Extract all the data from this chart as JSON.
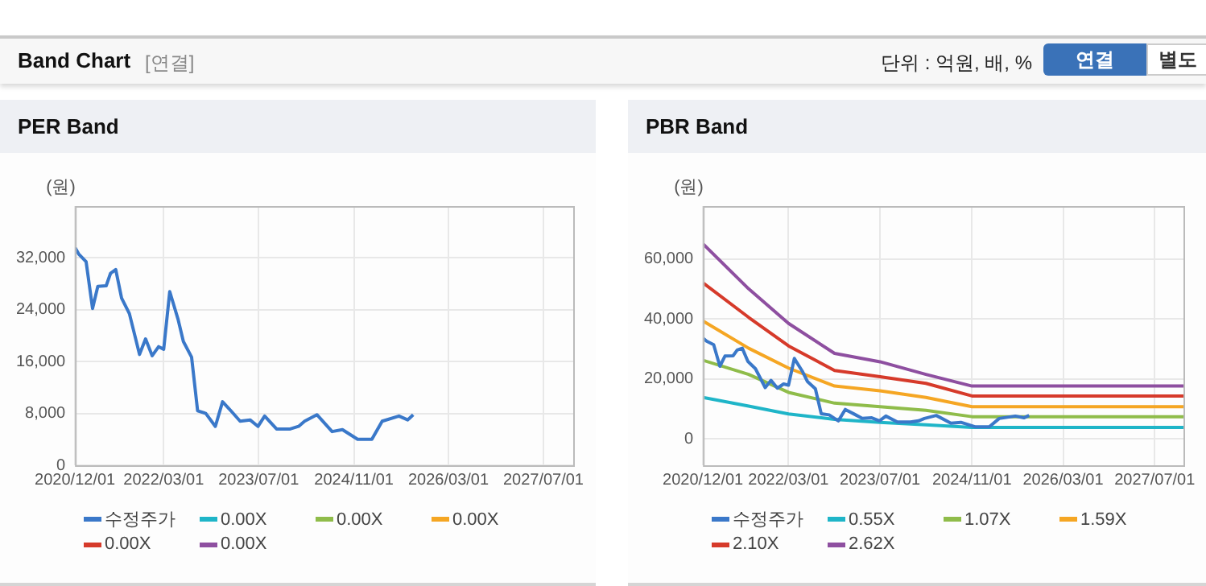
{
  "chart_data": [
    {
      "type": "other",
      "title": "Band Chart",
      "subtitle": "[연결]",
      "annotations": [
        "단위 : 억원, 배, %",
        "연결",
        "별도"
      ]
    },
    {
      "type": "line",
      "title": "PER Band",
      "ylabel": "(원)",
      "legend": "bottom",
      "grid": true,
      "x": [
        "2020-12-01",
        "2020-12-20",
        "2021-01-27",
        "2021-03-01",
        "2021-03-28",
        "2021-05-10",
        "2021-06-01",
        "2021-06-28",
        "2021-07-28",
        "2021-09-06",
        "2021-10-28",
        "2021-11-28",
        "2022-01-01",
        "2022-02-03",
        "2022-03-01",
        "2022-04-01",
        "2022-05-13",
        "2022-06-10",
        "2022-07-22",
        "2022-08-22",
        "2022-10-03",
        "2022-11-21",
        "2022-12-28",
        "2023-02-15",
        "2023-03-28",
        "2023-05-18",
        "2023-06-28",
        "2023-08-01",
        "2023-10-01",
        "2023-12-10",
        "2024-01-22",
        "2024-02-22",
        "2024-04-25",
        "2024-07-12",
        "2024-09-03",
        "2024-11-20",
        "2025-02-01",
        "2025-03-26",
        "2025-06-20",
        "2025-08-04",
        "2025-09-01"
      ],
      "xlim": [
        "2020-12-01",
        "2027-12-01"
      ],
      "xticks": [
        {
          "value": "2020-12-01",
          "label": "2020/12/01"
        },
        {
          "value": "2022-03-01",
          "label": "2022/03/01"
        },
        {
          "value": "2023-07-01",
          "label": "2023/07/01"
        },
        {
          "value": "2024-11-01",
          "label": "2024/11/01"
        },
        {
          "value": "2026-03-01",
          "label": "2026/03/01"
        },
        {
          "value": "2027-07-01",
          "label": "2027/07/01"
        }
      ],
      "ylim": [
        0,
        40000
      ],
      "yticks": [
        {
          "value": 0,
          "label": "0"
        },
        {
          "value": 8000,
          "label": "8,000"
        },
        {
          "value": 16000,
          "label": "16,000"
        },
        {
          "value": 24000,
          "label": "24,000"
        },
        {
          "value": 32000,
          "label": "32,000"
        }
      ],
      "series": [
        {
          "name": "수정주가",
          "color": "#3a78c9",
          "values": [
            33600,
            32600,
            31400,
            24200,
            27600,
            27700,
            29600,
            30200,
            25800,
            23400,
            17100,
            19500,
            16900,
            18300,
            17900,
            26800,
            22600,
            19100,
            16700,
            8400,
            8000,
            6000,
            9800,
            8200,
            6800,
            7000,
            6000,
            7600,
            5600,
            5600,
            6000,
            6800,
            7800,
            5200,
            5500,
            4000,
            4000,
            6800,
            7600,
            7000,
            7800
          ]
        },
        {
          "name": "0.00X",
          "color": "#1fb5c8",
          "values": [
            null,
            null,
            null,
            null,
            null,
            null,
            null,
            null,
            null,
            null,
            null,
            null,
            null,
            null,
            null,
            null,
            null,
            null,
            null,
            null,
            null,
            null,
            null,
            null,
            null,
            null,
            null,
            null,
            null,
            null,
            null,
            null,
            null,
            null,
            null,
            null,
            null,
            null,
            null,
            null,
            null
          ]
        },
        {
          "name": "0.00X",
          "color": "#8fbc4a",
          "values": [
            null,
            null,
            null,
            null,
            null,
            null,
            null,
            null,
            null,
            null,
            null,
            null,
            null,
            null,
            null,
            null,
            null,
            null,
            null,
            null,
            null,
            null,
            null,
            null,
            null,
            null,
            null,
            null,
            null,
            null,
            null,
            null,
            null,
            null,
            null,
            null,
            null,
            null,
            null,
            null,
            null
          ]
        },
        {
          "name": "0.00X",
          "color": "#f5a623",
          "values": [
            null,
            null,
            null,
            null,
            null,
            null,
            null,
            null,
            null,
            null,
            null,
            null,
            null,
            null,
            null,
            null,
            null,
            null,
            null,
            null,
            null,
            null,
            null,
            null,
            null,
            null,
            null,
            null,
            null,
            null,
            null,
            null,
            null,
            null,
            null,
            null,
            null,
            null,
            null,
            null,
            null
          ]
        },
        {
          "name": "0.00X",
          "color": "#d63a2a",
          "values": [
            null,
            null,
            null,
            null,
            null,
            null,
            null,
            null,
            null,
            null,
            null,
            null,
            null,
            null,
            null,
            null,
            null,
            null,
            null,
            null,
            null,
            null,
            null,
            null,
            null,
            null,
            null,
            null,
            null,
            null,
            null,
            null,
            null,
            null,
            null,
            null,
            null,
            null,
            null,
            null,
            null
          ]
        },
        {
          "name": "0.00X",
          "color": "#8e4fa0",
          "values": [
            null,
            null,
            null,
            null,
            null,
            null,
            null,
            null,
            null,
            null,
            null,
            null,
            null,
            null,
            null,
            null,
            null,
            null,
            null,
            null,
            null,
            null,
            null,
            null,
            null,
            null,
            null,
            null,
            null,
            null,
            null,
            null,
            null,
            null,
            null,
            null,
            null,
            null,
            null,
            null,
            null
          ]
        }
      ]
    },
    {
      "type": "line",
      "title": "PBR Band",
      "ylabel": "(원)",
      "legend": "bottom",
      "grid": true,
      "x": [
        "2020-12-01",
        "2020-12-20",
        "2021-01-27",
        "2021-03-01",
        "2021-03-28",
        "2021-05-10",
        "2021-06-01",
        "2021-06-28",
        "2021-07-28",
        "2021-09-06",
        "2021-10-28",
        "2021-11-28",
        "2022-01-01",
        "2022-02-03",
        "2022-03-01",
        "2022-04-01",
        "2022-05-13",
        "2022-06-10",
        "2022-07-22",
        "2022-08-22",
        "2022-10-03",
        "2022-11-21",
        "2022-12-28",
        "2023-02-15",
        "2023-03-28",
        "2023-05-18",
        "2023-06-28",
        "2023-08-01",
        "2023-10-01",
        "2023-12-10",
        "2024-01-22",
        "2024-02-22",
        "2024-04-25",
        "2024-07-12",
        "2024-09-03",
        "2024-11-20",
        "2025-02-01",
        "2025-03-26",
        "2025-06-20",
        "2025-08-04",
        "2025-09-01"
      ],
      "xlim": [
        "2020-12-01",
        "2027-12-01"
      ],
      "xticks": [
        {
          "value": "2020-12-01",
          "label": "2020/12/01"
        },
        {
          "value": "2022-03-01",
          "label": "2022/03/01"
        },
        {
          "value": "2023-07-01",
          "label": "2023/07/01"
        },
        {
          "value": "2024-11-01",
          "label": "2024/11/01"
        },
        {
          "value": "2026-03-01",
          "label": "2026/03/01"
        },
        {
          "value": "2027-07-01",
          "label": "2027/07/01"
        }
      ],
      "ylim": [
        -8800,
        77600
      ],
      "yticks": [
        {
          "value": 0,
          "label": "0"
        },
        {
          "value": 20000,
          "label": "20,000"
        },
        {
          "value": 40000,
          "label": "40,000"
        },
        {
          "value": 60000,
          "label": "60,000"
        }
      ],
      "series": [
        {
          "name": "수정주가",
          "color": "#3a78c9",
          "values": [
            33600,
            32600,
            31400,
            24200,
            27600,
            27700,
            29600,
            30200,
            25800,
            23400,
            17100,
            19500,
            16900,
            18300,
            17900,
            26800,
            22600,
            19100,
            16700,
            8400,
            8000,
            6000,
            9800,
            8200,
            6800,
            7000,
            6000,
            7600,
            5600,
            5600,
            6000,
            6800,
            7800,
            5200,
            5500,
            4000,
            4000,
            6800,
            7600,
            7000,
            7800
          ]
        },
        {
          "name": "0.55X",
          "color": "#1fb5c8",
          "x": [
            "2020-12-01",
            "2021-08-01",
            "2022-03-01",
            "2022-11-01",
            "2023-07-01",
            "2024-03-01",
            "2024-11-01",
            "2027-12-01"
          ],
          "values": [
            13800,
            10900,
            8300,
            6500,
            5500,
            4700,
            3800,
            3800
          ]
        },
        {
          "name": "1.07X",
          "color": "#8fbc4a",
          "x": [
            "2020-12-01",
            "2021-08-01",
            "2022-03-01",
            "2022-11-01",
            "2023-07-01",
            "2024-03-01",
            "2024-11-01",
            "2027-12-01"
          ],
          "values": [
            26200,
            21500,
            15500,
            11900,
            10700,
            9500,
            7400,
            7400
          ]
        },
        {
          "name": "1.59X",
          "color": "#f5a623",
          "x": [
            "2020-12-01",
            "2021-08-01",
            "2022-03-01",
            "2022-11-01",
            "2023-07-01",
            "2024-03-01",
            "2024-11-01",
            "2027-12-01"
          ],
          "values": [
            39300,
            30200,
            23600,
            17600,
            16000,
            13800,
            10700,
            10700
          ]
        },
        {
          "name": "2.10X",
          "color": "#d63a2a",
          "x": [
            "2020-12-01",
            "2021-08-01",
            "2022-03-01",
            "2022-11-01",
            "2023-07-01",
            "2024-03-01",
            "2024-11-01",
            "2027-12-01"
          ],
          "values": [
            52000,
            40500,
            31000,
            22800,
            20700,
            18500,
            14300,
            14300
          ]
        },
        {
          "name": "2.62X",
          "color": "#8e4fa0",
          "x": [
            "2020-12-01",
            "2021-08-01",
            "2022-03-01",
            "2022-11-01",
            "2023-07-01",
            "2024-03-01",
            "2024-11-01",
            "2027-12-01"
          ],
          "values": [
            65000,
            50000,
            38500,
            28500,
            25700,
            21500,
            17600,
            17600
          ]
        }
      ]
    }
  ]
}
